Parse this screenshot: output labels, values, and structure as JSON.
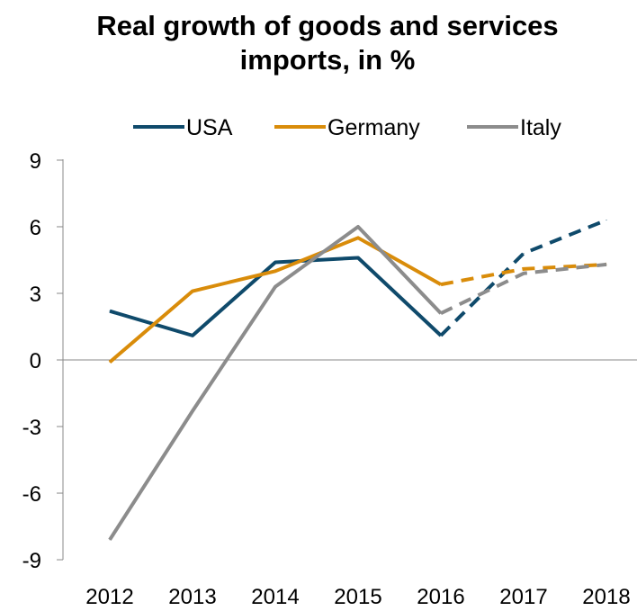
{
  "chart_data": {
    "type": "line",
    "title_lines": [
      "Real growth of goods and services",
      "imports, in %"
    ],
    "categories": [
      "2012",
      "2013",
      "2014",
      "2015",
      "2016",
      "2017",
      "2018"
    ],
    "ylim": [
      -9,
      9
    ],
    "yticks": [
      "9",
      "6",
      "3",
      "0",
      "-3",
      "-6",
      "-9"
    ],
    "ytick_values": [
      9,
      6,
      3,
      0,
      -3,
      -6,
      -9
    ],
    "legend_position": "top",
    "grid": false,
    "actual_through_index": 4,
    "forecast_style": "dashed",
    "series": [
      {
        "name": "USA",
        "color": "#0f4a6b",
        "values": [
          2.2,
          1.1,
          4.4,
          4.6,
          1.1,
          4.8,
          6.3
        ]
      },
      {
        "name": "Germany",
        "color": "#d98c0a",
        "values": [
          -0.1,
          3.1,
          4.0,
          5.5,
          3.4,
          4.1,
          4.3
        ]
      },
      {
        "name": "Italy",
        "color": "#8c8c8c",
        "values": [
          -8.1,
          -2.3,
          3.3,
          6.0,
          2.1,
          3.9,
          4.3
        ]
      }
    ]
  }
}
